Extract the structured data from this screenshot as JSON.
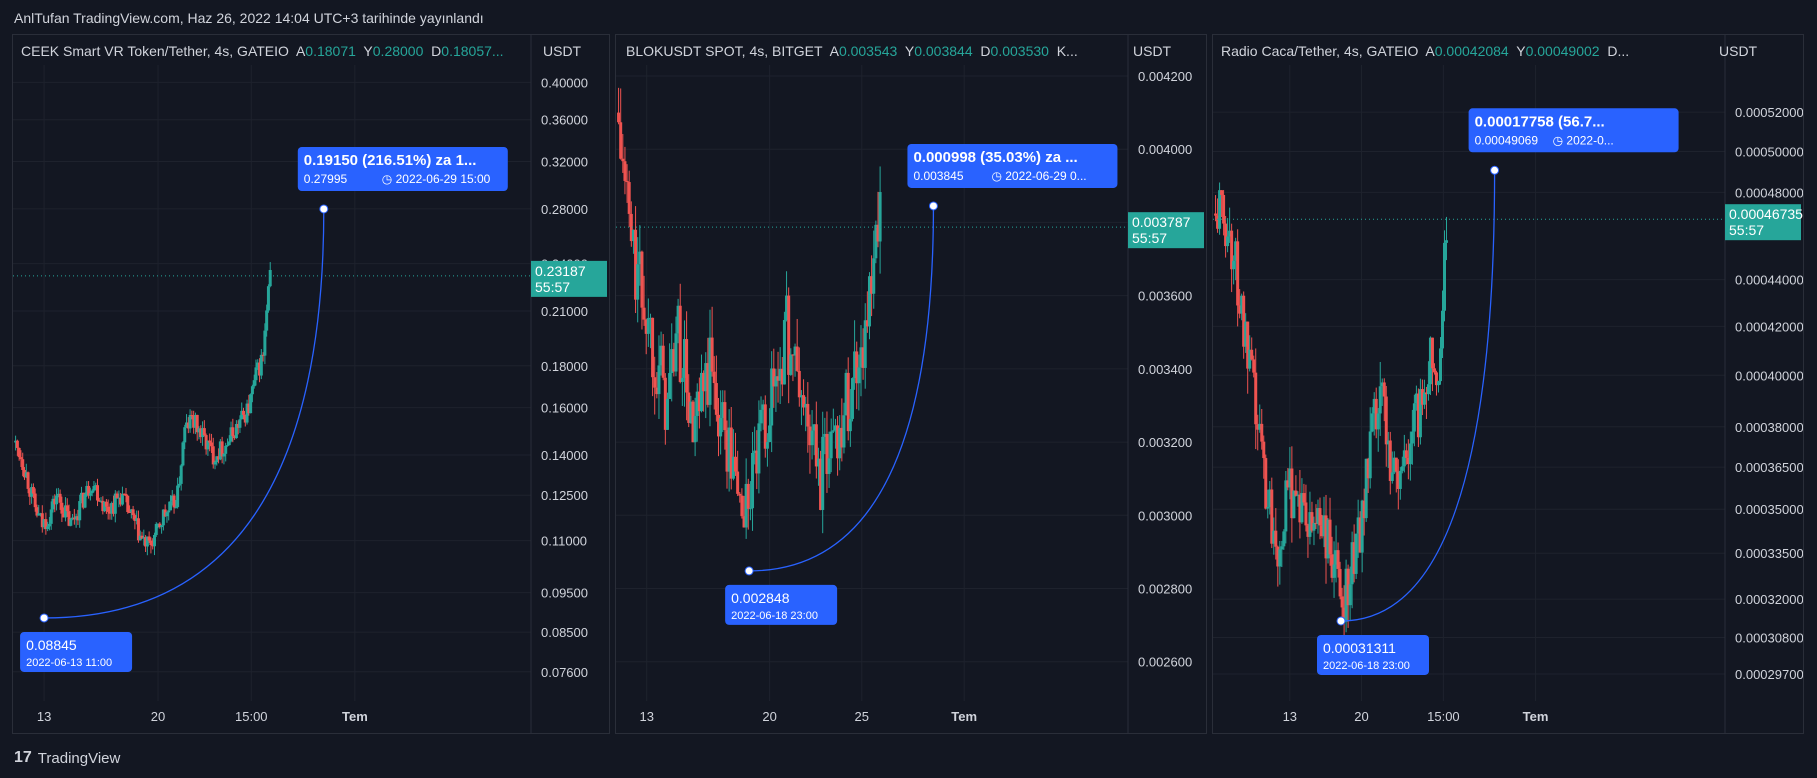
{
  "header": {
    "published": "AnlTufan TradingView.com, Haz 26, 2022 14:04 UTC+3 tarihinde yayınlandı"
  },
  "footer": {
    "brand": "TradingView",
    "logo": "tv-logo-icon"
  },
  "colors": {
    "up": "#26a69a",
    "down": "#ef5350",
    "accent": "#2962ff",
    "bg": "#131722",
    "grid": "#1e222d"
  },
  "chart_data": [
    {
      "type": "candlestick",
      "symbol": "CEEK Smart VR Token/Tether, 4s, GATEIO",
      "ohlc_labels": {
        "a_label": "A",
        "a": "0.18071",
        "y_label": "Y",
        "y": "0.28000",
        "d_label": "D",
        "d": "0.18057..."
      },
      "unit": "USDT",
      "y_ticks": [
        "0.40000",
        "0.36000",
        "0.32000",
        "0.28000",
        "0.24000",
        "0.21000",
        "0.18000",
        "0.16000",
        "0.14000",
        "0.12500",
        "0.11000",
        "0.09500",
        "0.08500",
        "0.07600"
      ],
      "y_tick_values": [
        0.4,
        0.36,
        0.32,
        0.28,
        0.24,
        0.21,
        0.18,
        0.16,
        0.14,
        0.125,
        0.11,
        0.095,
        0.085,
        0.076
      ],
      "ylim": [
        0.072,
        0.42
      ],
      "log_scale": true,
      "x_ticks": [
        "13",
        "20",
        "15:00",
        "Tem"
      ],
      "x_tick_values": [
        0.06,
        0.28,
        0.46,
        0.66
      ],
      "current_price": {
        "value": "0.23187",
        "timer": "55:57",
        "numeric": 0.23187
      },
      "low": {
        "price": "0.08845",
        "date": "2022-06-13 11:00",
        "numeric": 0.08845,
        "x": 0.06
      },
      "target": {
        "line1": "0.19150 (216.51%) za 1...",
        "price": "0.27995",
        "date": "2022-06-29  15:00",
        "numeric": 0.27995,
        "x": 0.6
      },
      "series_close": [
        0.145,
        0.14,
        0.13,
        0.12,
        0.115,
        0.118,
        0.125,
        0.12,
        0.115,
        0.12,
        0.125,
        0.13,
        0.125,
        0.12,
        0.122,
        0.125,
        0.12,
        0.115,
        0.11,
        0.108,
        0.112,
        0.118,
        0.12,
        0.125,
        0.15,
        0.155,
        0.15,
        0.145,
        0.14,
        0.142,
        0.145,
        0.15,
        0.155,
        0.16,
        0.175,
        0.185,
        0.232
      ],
      "series_last_x": 0.5
    },
    {
      "type": "candlestick",
      "symbol": "BLOKUSDT SPOT, 4s, BITGET",
      "ohlc_labels": {
        "a_label": "A",
        "a": "0.003543",
        "y_label": "Y",
        "y": "0.003844",
        "d_label": "D",
        "d": "0.003530",
        "k": "K..."
      },
      "unit": "USDT",
      "y_ticks": [
        "0.004200",
        "0.004000",
        "0.003800",
        "0.003600",
        "0.003400",
        "0.003200",
        "0.003000",
        "0.002800",
        "0.002600"
      ],
      "y_tick_values": [
        0.0042,
        0.004,
        0.0038,
        0.0036,
        0.0034,
        0.0032,
        0.003,
        0.0028,
        0.0026
      ],
      "ylim": [
        0.00252,
        0.00423
      ],
      "log_scale": false,
      "x_ticks": [
        "13",
        "20",
        "25",
        "Tem"
      ],
      "x_tick_values": [
        0.06,
        0.3,
        0.48,
        0.68
      ],
      "current_price": {
        "value": "0.003787",
        "timer": "55:57",
        "numeric": 0.003787
      },
      "low": {
        "price": "0.002848",
        "date": "2022-06-18 23:00",
        "numeric": 0.002848,
        "x": 0.26
      },
      "target": {
        "line1": "0.000998 (35.03%) za ...",
        "price": "0.003845",
        "date": "2022-06-29  0...",
        "numeric": 0.003845,
        "x": 0.62
      },
      "series_close": [
        0.0041,
        0.0039,
        0.0037,
        0.0036,
        0.0035,
        0.0034,
        0.0033,
        0.0035,
        0.0034,
        0.0032,
        0.0033,
        0.0034,
        0.0033,
        0.0032,
        0.0031,
        0.003,
        0.0031,
        0.0032,
        0.0033,
        0.0034,
        0.0035,
        0.0034,
        0.0033,
        0.0032,
        0.0031,
        0.0032,
        0.00325,
        0.0033,
        0.0034,
        0.0035,
        0.0036,
        0.0038
      ],
      "series_last_x": 0.52
    },
    {
      "type": "candlestick",
      "symbol": "Radio Caca/Tether, 4s, GATEIO",
      "ohlc_labels": {
        "a_label": "A",
        "a": "0.00042084",
        "y_label": "Y",
        "y": "0.00049002",
        "d_label": "D",
        "d": "D..."
      },
      "unit": "USDT",
      "y_ticks": [
        "0.00052000",
        "0.00050000",
        "0.00048000",
        "0.00044000",
        "0.00042000",
        "0.00040000",
        "0.00038000",
        "0.00036500",
        "0.00035000",
        "0.00033500",
        "0.00032000",
        "0.00030800",
        "0.00029700"
      ],
      "y_tick_values": [
        0.00052,
        0.0005,
        0.00048,
        0.00044,
        0.00042,
        0.0004,
        0.00038,
        0.000365,
        0.00035,
        0.000335,
        0.00032,
        0.000308,
        0.000297
      ],
      "ylim": [
        0.000292,
        0.000545
      ],
      "log_scale": true,
      "x_ticks": [
        "13",
        "20",
        "15:00",
        "Tem"
      ],
      "x_tick_values": [
        0.15,
        0.29,
        0.45,
        0.63
      ],
      "current_price": {
        "value": "0.00046735",
        "timer": "55:57",
        "numeric": 0.00046735
      },
      "low": {
        "price": "0.00031311",
        "date": "2022-06-18 23:00",
        "numeric": 0.00031311,
        "x": 0.25
      },
      "target": {
        "line1": "0.00017758 (56.7...",
        "price": "0.00049069",
        "date": "2022-0...",
        "numeric": 0.00049069,
        "x": 0.55
      },
      "series_close": [
        0.00047,
        0.00047,
        0.00046,
        0.00044,
        0.00041,
        0.00039,
        0.00037,
        0.00035,
        0.00034,
        0.00035,
        0.00036,
        0.00035,
        0.00034,
        0.00035,
        0.00034,
        0.00033,
        0.00032,
        0.00033,
        0.00034,
        0.00036,
        0.00038,
        0.00039,
        0.00037,
        0.00036,
        0.00037,
        0.00038,
        0.00039,
        0.00041,
        0.0004,
        0.000467
      ],
      "series_last_x": 0.46
    }
  ]
}
